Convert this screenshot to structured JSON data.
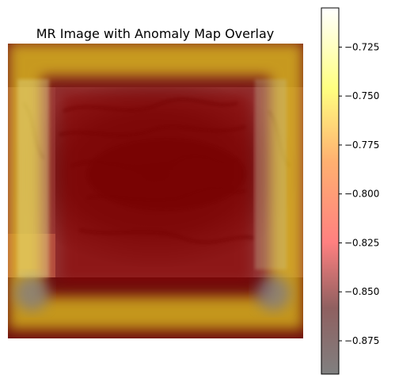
{
  "chart_data": {
    "type": "heatmap",
    "title": "MR Image with Anomaly Map Overlay",
    "axes_visible": false,
    "base_layer": "grayscale MR brain slice",
    "overlay_colormap": "hot",
    "overlay_alpha": 0.5,
    "colorbar": {
      "orientation": "vertical",
      "placement": "right",
      "min": -0.892,
      "max": -0.705,
      "ticks": [
        -0.725,
        -0.75,
        -0.775,
        -0.8,
        -0.825,
        -0.85,
        -0.875
      ],
      "tick_labels": [
        "−0.725",
        "−0.750",
        "−0.775",
        "−0.800",
        "−0.825",
        "−0.850",
        "−0.875"
      ]
    },
    "anomaly_map_description": [
      {
        "region": "outer frame",
        "value": -0.81
      },
      {
        "region": "inner frame band",
        "value": -0.74
      },
      {
        "region": "corners of inner band",
        "value": -0.87
      },
      {
        "region": "center",
        "value": -0.83
      }
    ]
  }
}
